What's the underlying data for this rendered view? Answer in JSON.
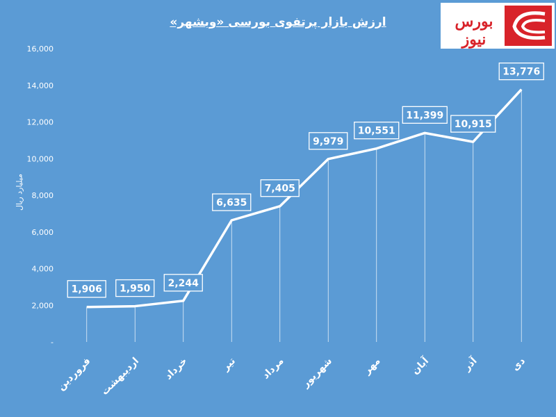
{
  "colors": {
    "background": "#5b9bd5",
    "line": "#ffffff",
    "logo_red": "#d8232a"
  },
  "logo": {
    "text": "بورس نیوز",
    "icon": "bourse-news-logo-icon"
  },
  "chart_data": {
    "type": "line",
    "title": "ارزش بازار پرتفوی بورسی «وبشهر»",
    "xlabel": "",
    "ylabel": "میلیارد ریال",
    "ylim": [
      0,
      16000
    ],
    "yticks": [
      0,
      2000,
      4000,
      6000,
      8000,
      10000,
      12000,
      14000,
      16000
    ],
    "ytick_labels": [
      "-",
      "2,000",
      "4,000",
      "6,000",
      "8,000",
      "10,000",
      "12,000",
      "14,000",
      "16,000"
    ],
    "categories": [
      "فروردین",
      "اردیبهشت",
      "خرداد",
      "تیر",
      "مرداد",
      "شهریور",
      "مهر",
      "آبان",
      "آذر",
      "دی"
    ],
    "values": [
      1906,
      1950,
      2244,
      6635,
      7405,
      9979,
      10551,
      11399,
      10915,
      13776
    ],
    "data_labels": [
      "1,906",
      "1,950",
      "2,244",
      "6,635",
      "7,405",
      "9,979",
      "10,551",
      "11,399",
      "10,915",
      "13,776"
    ],
    "grid": false,
    "legend": "none"
  }
}
